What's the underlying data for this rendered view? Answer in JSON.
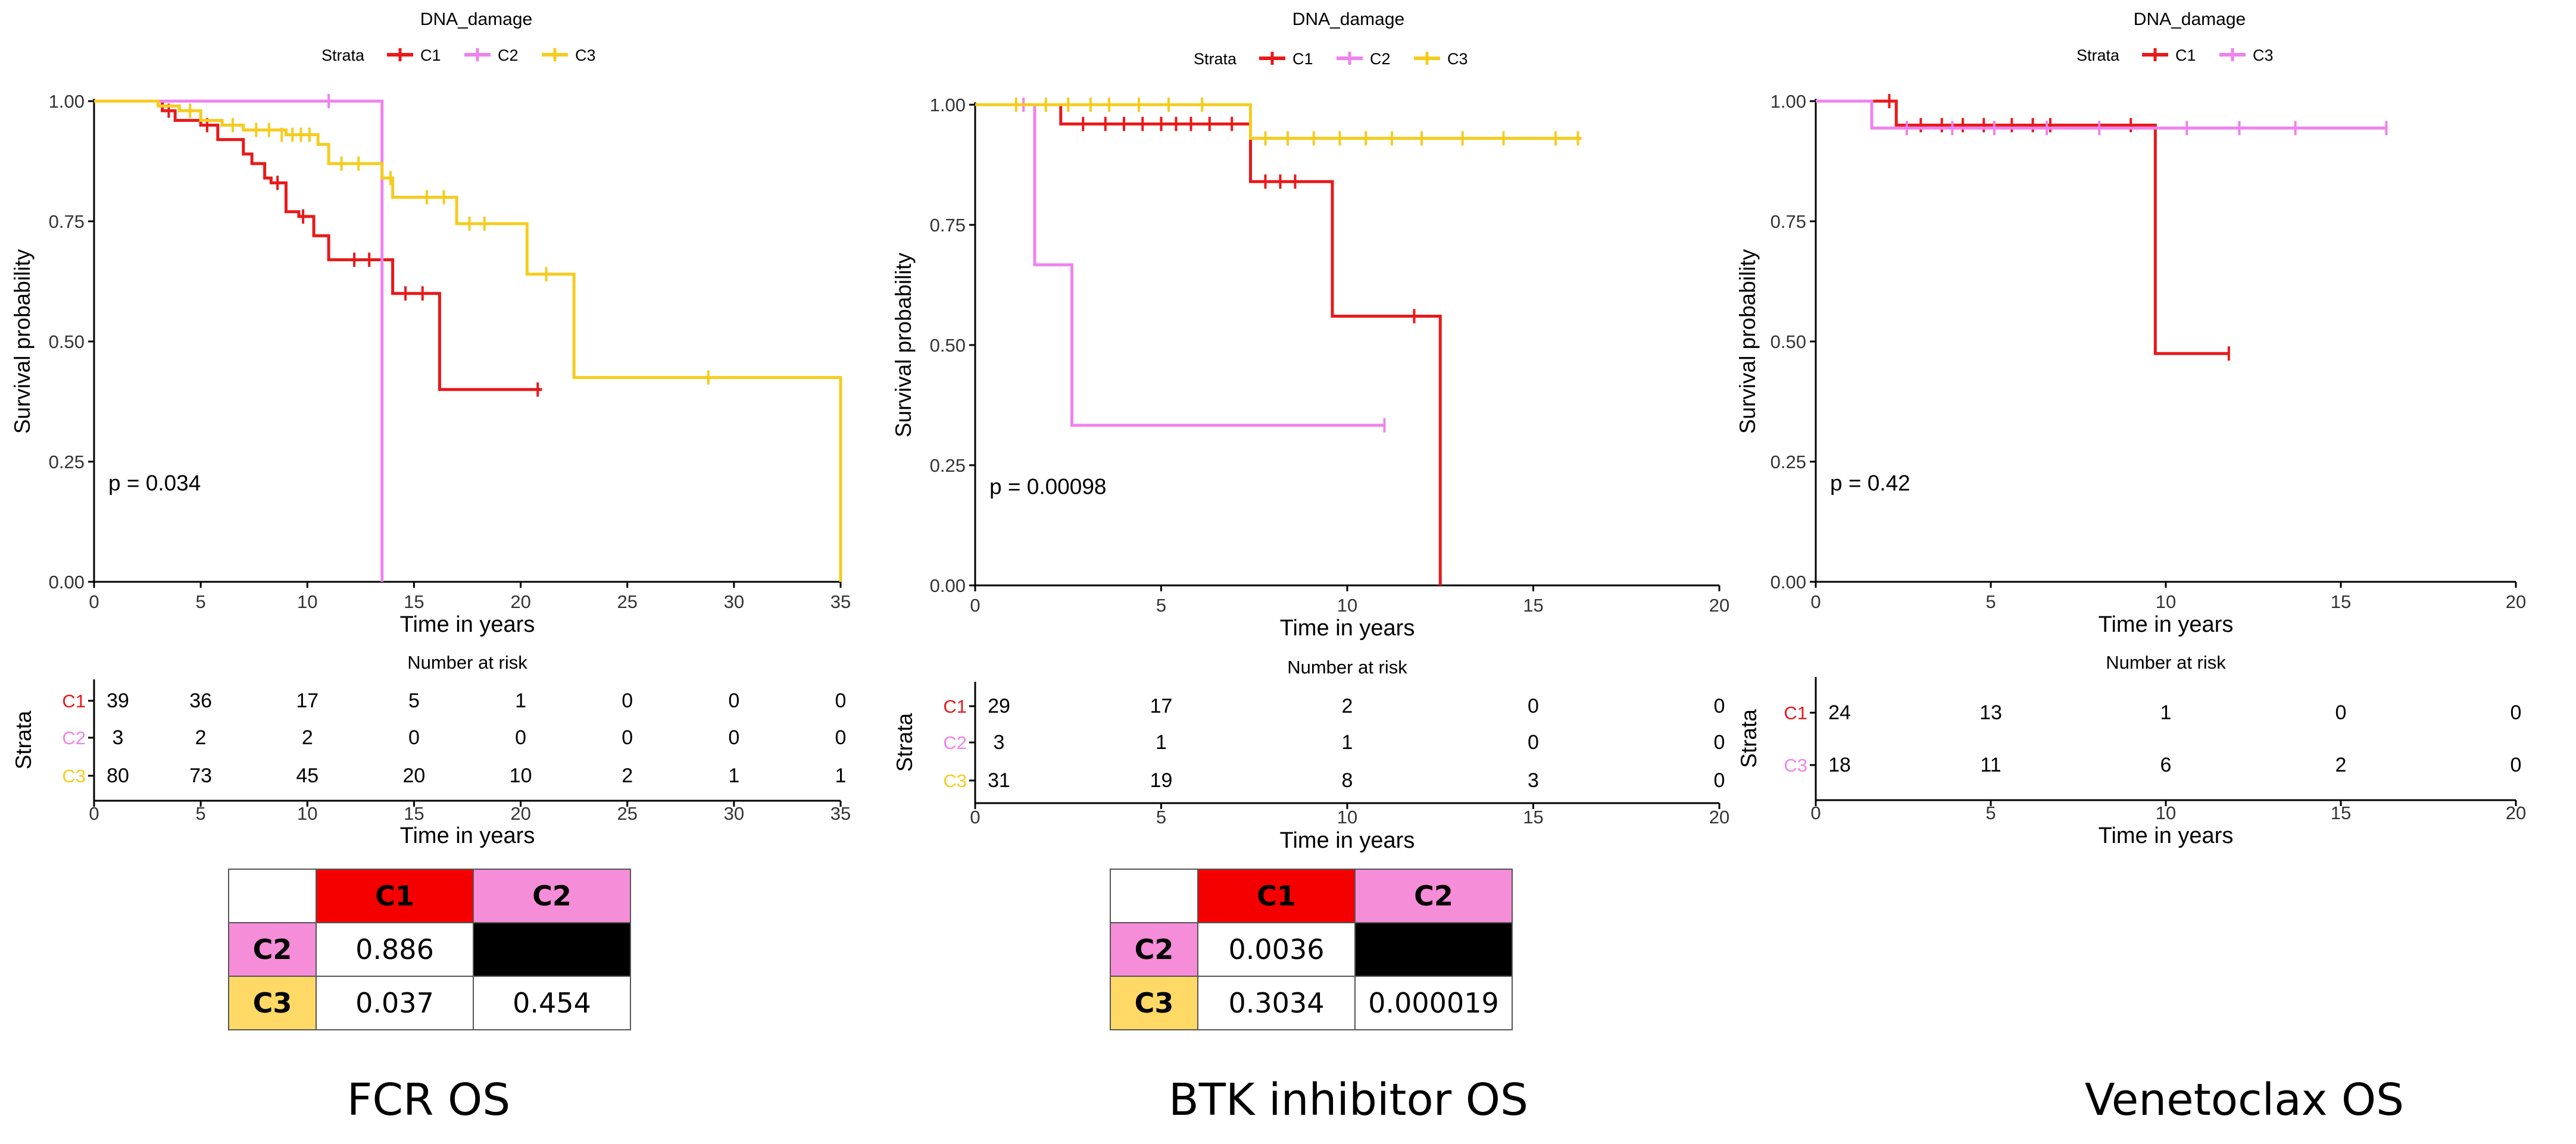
{
  "colors": {
    "C1": "#e8191a",
    "C2": "#ee82ee",
    "C3": "#f5cc1e",
    "axis": "#000000",
    "text": "#000000"
  },
  "common": {
    "legend_title": "DNA_damage",
    "legend_label": "Strata",
    "ylabel": "Survival probability",
    "xlabel": "Time in years",
    "risk_title": "Number at risk",
    "risk_ylabel": "Strata",
    "ytick_labels": [
      "0.00",
      "0.25",
      "0.50",
      "0.75",
      "1.00"
    ]
  },
  "chart_data": [
    {
      "type": "line",
      "subtype": "kaplan-meier",
      "caption": "FCR OS",
      "title": "DNA_damage",
      "xlabel": "Time in years",
      "ylabel": "Survival probability",
      "xlim": [
        0,
        35
      ],
      "ylim": [
        0,
        1
      ],
      "xticks": [
        0,
        5,
        10,
        15,
        20,
        25,
        30,
        35
      ],
      "yticks": [
        0,
        0.25,
        0.5,
        0.75,
        1.0
      ],
      "pvalue": "p = 0.034",
      "legend": [
        "C1",
        "C2",
        "C3"
      ],
      "series": [
        {
          "name": "C1",
          "color": "#e8191a",
          "x": [
            0,
            3.2,
            3.8,
            5,
            5.8,
            7,
            7.4,
            8,
            8.3,
            9,
            9.6,
            10.3,
            11,
            12,
            12.6,
            13.5,
            14,
            15,
            16,
            16.2,
            21
          ],
          "y": [
            1,
            0.98,
            0.96,
            0.95,
            0.92,
            0.89,
            0.87,
            0.84,
            0.83,
            0.77,
            0.76,
            0.72,
            0.67,
            0.67,
            0.67,
            0.67,
            0.6,
            0.6,
            0.6,
            0.4,
            0.4
          ],
          "censor_x": [
            3.5,
            5.3,
            8.6,
            9.8,
            12.2,
            12.9,
            14.6,
            15.4,
            20.8
          ],
          "censor_y": [
            0.98,
            0.95,
            0.83,
            0.76,
            0.67,
            0.67,
            0.6,
            0.6,
            0.4
          ]
        },
        {
          "name": "C2",
          "color": "#ee82ee",
          "x": [
            0,
            13.5,
            13.5
          ],
          "y": [
            1,
            1,
            0
          ],
          "censor_x": [
            11
          ],
          "censor_y": [
            1
          ]
        },
        {
          "name": "C3",
          "color": "#f5cc1e",
          "x": [
            0,
            3,
            4,
            5,
            6,
            7,
            9,
            10.5,
            11,
            13.5,
            14,
            15,
            17,
            20.2,
            20.3,
            22.5,
            35,
            35
          ],
          "y": [
            1,
            0.99,
            0.98,
            0.96,
            0.95,
            0.94,
            0.93,
            0.91,
            0.87,
            0.84,
            0.8,
            0.8,
            0.745,
            0.745,
            0.64,
            0.425,
            0.425,
            0
          ],
          "censor_x": [
            4.5,
            6.5,
            7.6,
            8.2,
            8.8,
            9.3,
            9.7,
            10.1,
            11.6,
            12.4,
            13.9,
            15.6,
            16.4,
            17.6,
            18.3,
            21.2,
            28.8
          ],
          "censor_y": [
            0.98,
            0.95,
            0.94,
            0.94,
            0.93,
            0.93,
            0.93,
            0.93,
            0.87,
            0.87,
            0.84,
            0.8,
            0.8,
            0.745,
            0.745,
            0.64,
            0.425
          ]
        }
      ],
      "risk_table": {
        "title": "Number at risk",
        "times": [
          0,
          5,
          10,
          15,
          20,
          25,
          30,
          35
        ],
        "rows": [
          {
            "label": "C1",
            "values": [
              "39",
              "36",
              "17",
              "5",
              "1",
              "0",
              "0",
              "0"
            ]
          },
          {
            "label": "C2",
            "values": [
              "3",
              "2",
              "2",
              "0",
              "0",
              "0",
              "0",
              "0"
            ]
          },
          {
            "label": "C3",
            "values": [
              "80",
              "73",
              "45",
              "20",
              "10",
              "2",
              "1",
              "1"
            ]
          }
        ]
      },
      "pvalue_table": {
        "col_headers": [
          "C1",
          "C2"
        ],
        "rows": [
          {
            "label": "C2",
            "values": [
              "0.886",
              ""
            ]
          },
          {
            "label": "C3",
            "values": [
              "0.037",
              "0.454"
            ]
          }
        ]
      }
    },
    {
      "type": "line",
      "subtype": "kaplan-meier",
      "caption": "BTK inhibitor OS",
      "title": "DNA_damage",
      "xlabel": "Time in years",
      "ylabel": "Survival probability",
      "xlim": [
        0,
        20
      ],
      "ylim": [
        0,
        1
      ],
      "xticks": [
        0,
        5,
        10,
        15,
        20
      ],
      "yticks": [
        0,
        0.25,
        0.5,
        0.75,
        1.0
      ],
      "pvalue": "p = 0.00098",
      "legend": [
        "C1",
        "C2",
        "C3"
      ],
      "series": [
        {
          "name": "C1",
          "color": "#e8191a",
          "x": [
            0,
            2.3,
            7.4,
            9.6,
            12.5,
            12.5
          ],
          "y": [
            1,
            0.96,
            0.84,
            0.56,
            0.56,
            0
          ],
          "censor_x": [
            2.9,
            3.5,
            4.0,
            4.5,
            5.0,
            5.4,
            5.8,
            6.3,
            6.9,
            7.8,
            8.2,
            8.6,
            11.8
          ],
          "censor_y": [
            0.96,
            0.96,
            0.96,
            0.96,
            0.96,
            0.96,
            0.96,
            0.96,
            0.96,
            0.84,
            0.84,
            0.84,
            0.56
          ]
        },
        {
          "name": "C2",
          "color": "#ee82ee",
          "x": [
            0,
            1.6,
            2.6,
            11
          ],
          "y": [
            1,
            0.667,
            0.333,
            0.333
          ],
          "censor_x": [
            1.3,
            11
          ],
          "censor_y": [
            1,
            0.333
          ]
        },
        {
          "name": "C3",
          "color": "#f5cc1e",
          "x": [
            0,
            7.4,
            16.3
          ],
          "y": [
            1,
            0.93,
            0.93
          ],
          "censor_x": [
            1.1,
            1.9,
            2.5,
            3.1,
            3.6,
            4.4,
            5.2,
            6.1,
            7.8,
            8.4,
            9.1,
            9.8,
            10.5,
            11.2,
            12.0,
            13.1,
            14.2,
            15.6,
            16.2
          ],
          "censor_y": [
            1,
            1,
            1,
            1,
            1,
            1,
            1,
            1,
            0.93,
            0.93,
            0.93,
            0.93,
            0.93,
            0.93,
            0.93,
            0.93,
            0.93,
            0.93,
            0.93
          ]
        }
      ],
      "risk_table": {
        "title": "Number at risk",
        "times": [
          0,
          5,
          10,
          15,
          20
        ],
        "rows": [
          {
            "label": "C1",
            "values": [
              "29",
              "17",
              "2",
              "0",
              "0"
            ]
          },
          {
            "label": "C2",
            "values": [
              "3",
              "1",
              "1",
              "0",
              "0"
            ]
          },
          {
            "label": "C3",
            "values": [
              "31",
              "19",
              "8",
              "3",
              "0"
            ]
          }
        ]
      },
      "pvalue_table": {
        "col_headers": [
          "C1",
          "C2"
        ],
        "rows": [
          {
            "label": "C2",
            "values": [
              "0.0036",
              ""
            ]
          },
          {
            "label": "C3",
            "values": [
              "0.3034",
              "0.000019"
            ]
          }
        ]
      }
    },
    {
      "type": "line",
      "subtype": "kaplan-meier",
      "caption": "Venetoclax OS",
      "title": "DNA_damage",
      "xlabel": "Time in years",
      "ylabel": "Survival probability",
      "xlim": [
        0,
        20
      ],
      "ylim": [
        0,
        1
      ],
      "xticks": [
        0,
        5,
        10,
        15,
        20
      ],
      "yticks": [
        0,
        0.25,
        0.5,
        0.75,
        1.0
      ],
      "pvalue": "p = 0.42",
      "legend": [
        "C1",
        "C3"
      ],
      "series": [
        {
          "name": "C1",
          "color": "#e8191a",
          "x": [
            0,
            2.3,
            9.7,
            11.8
          ],
          "y": [
            1,
            0.95,
            0.475,
            0.475
          ],
          "censor_x": [
            2.1,
            3.0,
            3.6,
            4.2,
            4.8,
            5.6,
            6.2,
            6.7,
            9.0,
            11.8
          ],
          "censor_y": [
            1,
            0.95,
            0.95,
            0.95,
            0.95,
            0.95,
            0.95,
            0.95,
            0.95,
            0.475
          ]
        },
        {
          "name": "C3",
          "color": "#ee82ee",
          "x": [
            0,
            1.6,
            16.3
          ],
          "y": [
            1,
            0.944,
            0.944
          ],
          "censor_x": [
            2.6,
            3.9,
            5.1,
            6.6,
            8.1,
            10.6,
            12.1,
            13.7,
            16.3
          ],
          "censor_y": [
            0.944,
            0.944,
            0.944,
            0.944,
            0.944,
            0.944,
            0.944,
            0.944,
            0.944
          ]
        }
      ],
      "risk_table": {
        "title": "Number at risk",
        "times": [
          0,
          5,
          10,
          15,
          20
        ],
        "rows": [
          {
            "label": "C1",
            "values": [
              "24",
              "13",
              "1",
              "0",
              "0"
            ]
          },
          {
            "label": "C3",
            "values": [
              "18",
              "11",
              "6",
              "2",
              "0"
            ]
          }
        ]
      }
    }
  ]
}
